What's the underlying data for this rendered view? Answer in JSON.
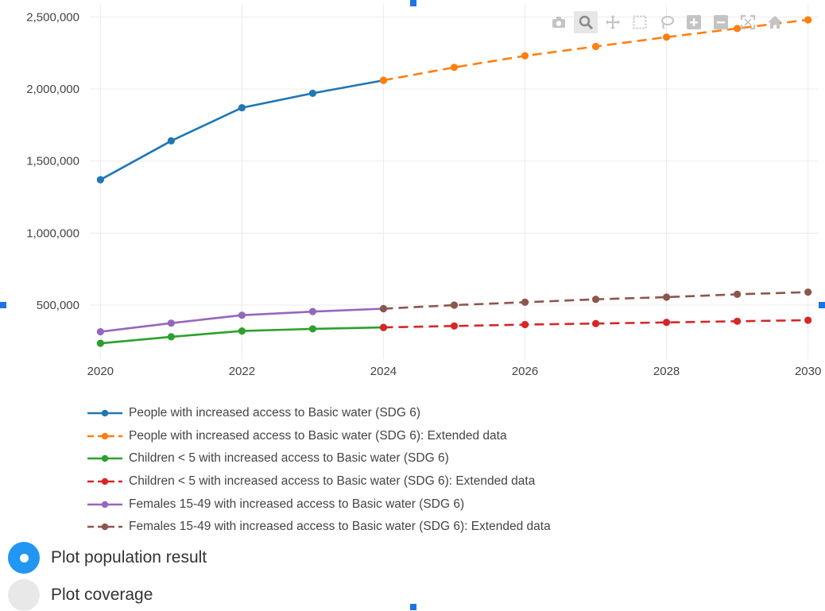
{
  "colors": {
    "blue": "#1f77b4",
    "orange": "#ff7f0e",
    "green": "#2ca02c",
    "red": "#d62728",
    "purple": "#9467bd",
    "brown": "#8c564b",
    "radio_accent": "#2196f3"
  },
  "modebar": [
    {
      "name": "camera-icon",
      "active": false
    },
    {
      "name": "zoom-icon",
      "active": true
    },
    {
      "name": "pan-icon",
      "active": false
    },
    {
      "name": "box-select-icon",
      "active": false
    },
    {
      "name": "lasso-icon",
      "active": false
    },
    {
      "name": "zoom-in-icon",
      "active": false
    },
    {
      "name": "zoom-out-icon",
      "active": false
    },
    {
      "name": "autoscale-icon",
      "active": false
    },
    {
      "name": "reset-axes-icon",
      "active": false
    }
  ],
  "chart_data": {
    "type": "line",
    "title": "",
    "xlabel": "",
    "ylabel": "",
    "xlim": [
      2019.85,
      2030.15
    ],
    "ylim": [
      125000,
      2590000
    ],
    "x_ticks": [
      2020,
      2022,
      2024,
      2026,
      2028,
      2030
    ],
    "y_ticks": [
      500000,
      1000000,
      1500000,
      2000000,
      2500000
    ],
    "y_tick_labels": [
      "500,000",
      "1,000,000",
      "1,500,000",
      "2,000,000",
      "2,500,000"
    ],
    "grid": true,
    "legend_position": "bottom",
    "series": [
      {
        "name": "People with increased access to Basic water (SDG 6)",
        "color": "#1f77b4",
        "dash": false,
        "x": [
          2020,
          2021,
          2022,
          2023,
          2024
        ],
        "y": [
          1370000,
          1640000,
          1870000,
          1970000,
          2060000
        ]
      },
      {
        "name": "People with increased access to Basic water (SDG 6): Extended data",
        "color": "#ff7f0e",
        "dash": true,
        "x": [
          2024,
          2025,
          2026,
          2027,
          2028,
          2029,
          2030
        ],
        "y": [
          2060000,
          2150000,
          2230000,
          2295000,
          2360000,
          2420000,
          2480000
        ]
      },
      {
        "name": "Children < 5 with increased access to Basic water (SDG 6)",
        "color": "#2ca02c",
        "dash": false,
        "x": [
          2020,
          2021,
          2022,
          2023,
          2024
        ],
        "y": [
          235000,
          280000,
          320000,
          335000,
          345000
        ]
      },
      {
        "name": "Children < 5 with increased access to Basic water (SDG 6): Extended data",
        "color": "#d62728",
        "dash": true,
        "x": [
          2024,
          2025,
          2026,
          2027,
          2028,
          2029,
          2030
        ],
        "y": [
          345000,
          355000,
          365000,
          372000,
          380000,
          388000,
          395000
        ]
      },
      {
        "name": "Females 15-49 with increased access to Basic water (SDG 6)",
        "color": "#9467bd",
        "dash": false,
        "x": [
          2020,
          2021,
          2022,
          2023,
          2024
        ],
        "y": [
          315000,
          375000,
          430000,
          455000,
          475000
        ]
      },
      {
        "name": "Females 15-49 with increased access to Basic water (SDG 6): Extended data",
        "color": "#8c564b",
        "dash": true,
        "x": [
          2024,
          2025,
          2026,
          2027,
          2028,
          2029,
          2030
        ],
        "y": [
          475000,
          500000,
          520000,
          540000,
          555000,
          575000,
          590000
        ]
      }
    ]
  },
  "options": [
    {
      "label": "Plot population result",
      "checked": true
    },
    {
      "label": "Plot coverage",
      "checked": false
    }
  ]
}
